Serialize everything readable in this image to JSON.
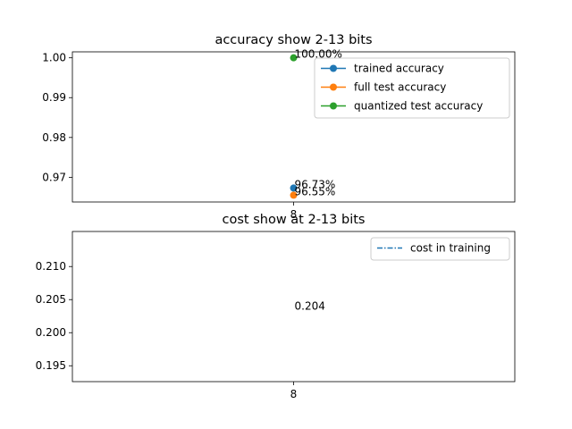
{
  "chart_data": [
    {
      "type": "scatter",
      "title": "accuracy show 2-13 bits",
      "xlabel": "",
      "ylabel": "",
      "x_ticks": [
        "8"
      ],
      "y_ticks": [
        "0.97",
        "0.98",
        "0.99",
        "1.00"
      ],
      "ylim": [
        0.9638,
        1.0015
      ],
      "grid": false,
      "legend_position": "upper right",
      "series": [
        {
          "name": "trained accuracy",
          "color": "#1f77b4",
          "marker": "circle",
          "x": [
            8
          ],
          "y": [
            0.9673
          ],
          "labels": [
            "96.73%"
          ]
        },
        {
          "name": "full test accuracy",
          "color": "#ff7f0e",
          "marker": "circle",
          "x": [
            8
          ],
          "y": [
            0.9655
          ],
          "labels": [
            "96.55%"
          ]
        },
        {
          "name": "quantized test accuracy",
          "color": "#2ca02c",
          "marker": "circle",
          "x": [
            8
          ],
          "y": [
            1.0
          ],
          "labels": [
            "100.00%"
          ]
        }
      ]
    },
    {
      "type": "line",
      "title": "cost show at 2-13 bits",
      "xlabel": "",
      "ylabel": "",
      "x_ticks": [
        "8"
      ],
      "y_ticks": [
        "0.195",
        "0.200",
        "0.205",
        "0.210"
      ],
      "ylim": [
        0.1926,
        0.2153
      ],
      "grid": false,
      "legend_position": "upper right",
      "series": [
        {
          "name": "cost in training",
          "color": "#1f77b4",
          "linestyle": "dash-dot",
          "x": [
            8
          ],
          "y": [
            0.204
          ],
          "labels": [
            "0.204"
          ]
        }
      ]
    }
  ]
}
